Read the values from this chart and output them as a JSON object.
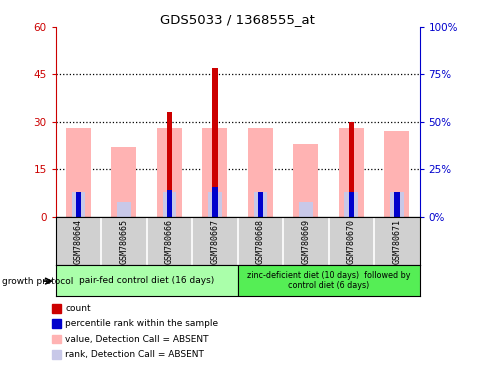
{
  "title": "GDS5033 / 1368555_at",
  "samples": [
    "GSM780664",
    "GSM780665",
    "GSM780666",
    "GSM780667",
    "GSM780668",
    "GSM780669",
    "GSM780670",
    "GSM780671"
  ],
  "count_values": [
    0,
    0,
    33,
    47,
    0,
    0,
    30,
    0
  ],
  "percentile_rank_values": [
    13,
    0,
    14,
    16,
    13,
    0,
    13,
    13
  ],
  "value_absent_values": [
    28,
    22,
    28,
    28,
    28,
    23,
    28,
    27
  ],
  "rank_absent_values": [
    13,
    8,
    13,
    13,
    13,
    8,
    13,
    13
  ],
  "left_ylim": [
    0,
    60
  ],
  "right_ylim": [
    0,
    100
  ],
  "left_yticks": [
    0,
    15,
    30,
    45,
    60
  ],
  "right_yticks": [
    0,
    25,
    50,
    75,
    100
  ],
  "left_ytick_labels": [
    "0",
    "15",
    "30",
    "45",
    "60"
  ],
  "right_ytick_labels": [
    "0%",
    "25%",
    "50%",
    "75%",
    "100%"
  ],
  "group1_label": "pair-fed control diet (16 days)",
  "group2_label": "zinc-deficient diet (10 days)  followed by\ncontrol diet (6 days)",
  "growth_protocol_label": "growth protocol",
  "color_count": "#cc0000",
  "color_percentile": "#0000cc",
  "color_value_absent": "#ffb3b3",
  "color_rank_absent": "#c8c8e8",
  "color_group1_bg": "#aaffaa",
  "color_group2_bg": "#55ee55",
  "color_sample_bg": "#d0d0d0",
  "legend_items": [
    "count",
    "percentile rank within the sample",
    "value, Detection Call = ABSENT",
    "rank, Detection Call = ABSENT"
  ],
  "legend_colors": [
    "#cc0000",
    "#0000cc",
    "#ffb3b3",
    "#c8c8e8"
  ]
}
